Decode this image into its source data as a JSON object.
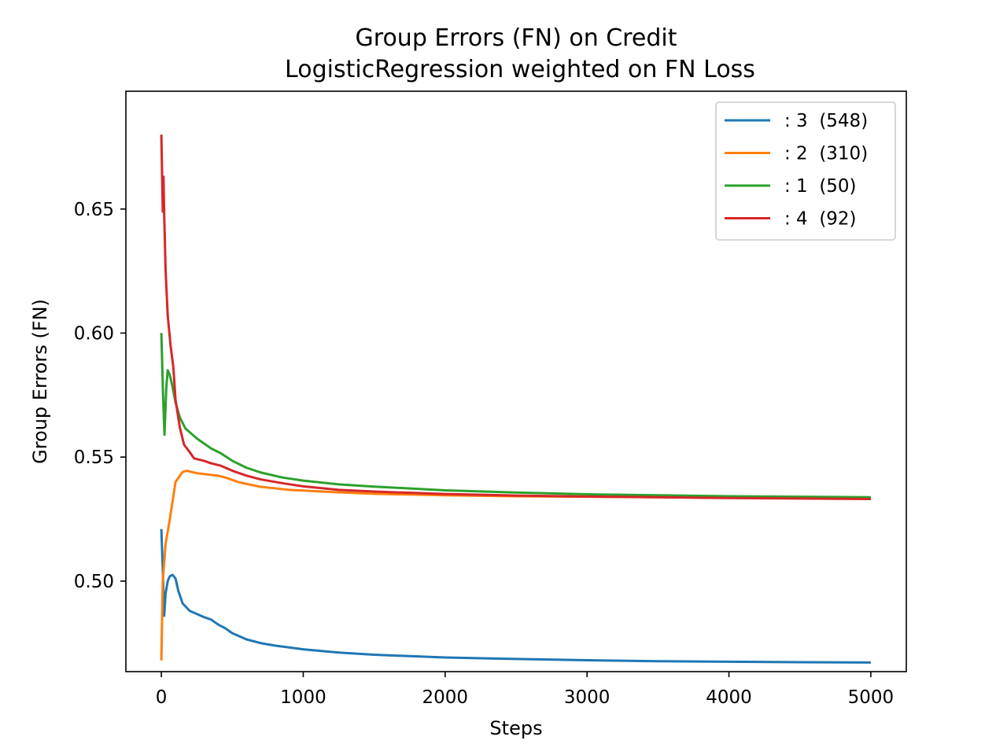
{
  "chart_data": {
    "type": "line",
    "title": "Group Errors (FN) on Credit",
    "subtitle": "LogisticRegression weighted on FN Loss",
    "xlabel": "Steps",
    "ylabel": "Group Errors (FN)",
    "xlim": [
      -250,
      5250
    ],
    "ylim": [
      0.4635,
      0.6975
    ],
    "xticks": [
      0,
      1000,
      2000,
      3000,
      4000,
      5000
    ],
    "yticks": [
      0.5,
      0.55,
      0.6,
      0.65
    ],
    "xtick_labels": [
      "0",
      "1000",
      "2000",
      "3000",
      "4000",
      "5000"
    ],
    "ytick_labels": [
      "0.50",
      "0.55",
      "0.60",
      "0.65"
    ],
    "grid": false,
    "legend_position": "top-right",
    "series": [
      {
        "name": ": 3  (548)",
        "color": "#1f77b4",
        "points": [
          [
            0,
            0.521
          ],
          [
            10,
            0.505
          ],
          [
            20,
            0.486
          ],
          [
            30,
            0.495
          ],
          [
            45,
            0.5
          ],
          [
            60,
            0.502
          ],
          [
            80,
            0.5025
          ],
          [
            100,
            0.501
          ],
          [
            120,
            0.496
          ],
          [
            150,
            0.491
          ],
          [
            200,
            0.488
          ],
          [
            300,
            0.4855
          ],
          [
            350,
            0.4845
          ],
          [
            400,
            0.4825
          ],
          [
            450,
            0.481
          ],
          [
            500,
            0.479
          ],
          [
            600,
            0.4765
          ],
          [
            700,
            0.475
          ],
          [
            800,
            0.474
          ],
          [
            1000,
            0.4725
          ],
          [
            1250,
            0.4712
          ],
          [
            1500,
            0.4703
          ],
          [
            2000,
            0.4692
          ],
          [
            2500,
            0.4686
          ],
          [
            3000,
            0.4681
          ],
          [
            3500,
            0.4677
          ],
          [
            4000,
            0.4675
          ],
          [
            4500,
            0.4673
          ],
          [
            5000,
            0.4672
          ]
        ]
      },
      {
        "name": ": 2  (310)",
        "color": "#ff7f0e",
        "points": [
          [
            0,
            0.468
          ],
          [
            10,
            0.5
          ],
          [
            30,
            0.515
          ],
          [
            60,
            0.525
          ],
          [
            100,
            0.54
          ],
          [
            150,
            0.544
          ],
          [
            180,
            0.5445
          ],
          [
            250,
            0.5435
          ],
          [
            400,
            0.5425
          ],
          [
            450,
            0.5418
          ],
          [
            550,
            0.5398
          ],
          [
            700,
            0.538
          ],
          [
            900,
            0.5368
          ],
          [
            1200,
            0.5359
          ],
          [
            1500,
            0.5352
          ],
          [
            2000,
            0.5346
          ],
          [
            2500,
            0.5342
          ],
          [
            3000,
            0.534
          ],
          [
            3500,
            0.5338
          ],
          [
            4000,
            0.5336
          ],
          [
            5000,
            0.5334
          ]
        ]
      },
      {
        "name": ": 1  (50)",
        "color": "#2ca02c",
        "points": [
          [
            0,
            0.6
          ],
          [
            12,
            0.575
          ],
          [
            22,
            0.559
          ],
          [
            35,
            0.578
          ],
          [
            45,
            0.585
          ],
          [
            60,
            0.583
          ],
          [
            80,
            0.578
          ],
          [
            100,
            0.572
          ],
          [
            130,
            0.566
          ],
          [
            170,
            0.5615
          ],
          [
            250,
            0.5575
          ],
          [
            350,
            0.5535
          ],
          [
            420,
            0.5515
          ],
          [
            500,
            0.5485
          ],
          [
            600,
            0.5457
          ],
          [
            700,
            0.5438
          ],
          [
            850,
            0.5418
          ],
          [
            1000,
            0.5405
          ],
          [
            1250,
            0.539
          ],
          [
            1500,
            0.5381
          ],
          [
            2000,
            0.5366
          ],
          [
            2500,
            0.5357
          ],
          [
            3000,
            0.535
          ],
          [
            3500,
            0.5346
          ],
          [
            4000,
            0.5342
          ],
          [
            4500,
            0.534
          ],
          [
            5000,
            0.5338
          ]
        ]
      },
      {
        "name": ": 4  (92)",
        "color": "#d62728",
        "points": [
          [
            0,
            0.68
          ],
          [
            10,
            0.649
          ],
          [
            15,
            0.663
          ],
          [
            20,
            0.648
          ],
          [
            30,
            0.625
          ],
          [
            45,
            0.607
          ],
          [
            65,
            0.595
          ],
          [
            85,
            0.586
          ],
          [
            100,
            0.573
          ],
          [
            130,
            0.562
          ],
          [
            160,
            0.555
          ],
          [
            200,
            0.552
          ],
          [
            230,
            0.5495
          ],
          [
            300,
            0.5485
          ],
          [
            350,
            0.5475
          ],
          [
            420,
            0.5465
          ],
          [
            500,
            0.5445
          ],
          [
            600,
            0.5425
          ],
          [
            700,
            0.541
          ],
          [
            850,
            0.5395
          ],
          [
            1000,
            0.5382
          ],
          [
            1250,
            0.5368
          ],
          [
            1500,
            0.5361
          ],
          [
            2000,
            0.5351
          ],
          [
            2500,
            0.5345
          ],
          [
            3000,
            0.5341
          ],
          [
            3500,
            0.5338
          ],
          [
            4000,
            0.5335
          ],
          [
            4500,
            0.5333
          ],
          [
            5000,
            0.5331
          ]
        ]
      }
    ]
  }
}
